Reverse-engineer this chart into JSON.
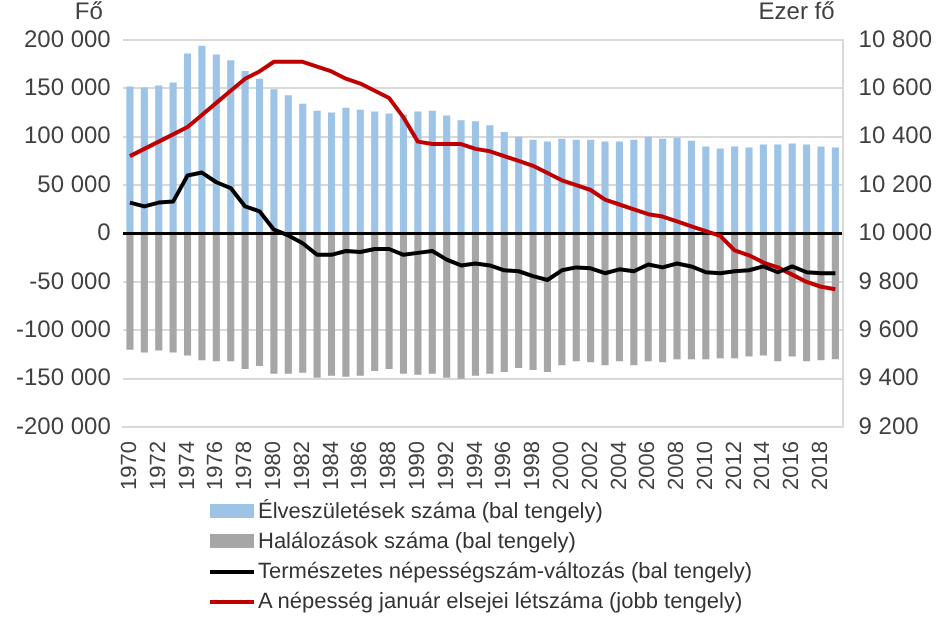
{
  "chart_data": {
    "type": "bar",
    "stacked": true,
    "categories": [
      "1970",
      null,
      "1972",
      null,
      "1974",
      null,
      "1976",
      null,
      "1978",
      null,
      "1980",
      null,
      "1982",
      null,
      "1984",
      null,
      "1986",
      null,
      "1988",
      null,
      "1990",
      null,
      "1992",
      null,
      "1994",
      null,
      "1996",
      null,
      "1998",
      null,
      "2000",
      null,
      "2002",
      null,
      "2004",
      null,
      "2006",
      null,
      "2008",
      null,
      "2010",
      null,
      "2012",
      null,
      "2014",
      null,
      "2016",
      null,
      "2018",
      null
    ],
    "ylabel": "Fő",
    "y2label": "Ezer fő",
    "series": [
      {
        "name": "Élveszületések száma (bal tengely)",
        "color": "#9dc3e6",
        "values": [
          152000,
          151000,
          153000,
          156000,
          186000,
          194000,
          185000,
          179000,
          168000,
          160000,
          149000,
          143000,
          134000,
          127000,
          125000,
          130000,
          128000,
          126000,
          124000,
          123000,
          126000,
          127000,
          122000,
          117000,
          116000,
          112000,
          105000,
          100000,
          97000,
          95000,
          98000,
          97000,
          97000,
          95000,
          95000,
          97000,
          100000,
          98000,
          99000,
          96000,
          90000,
          88000,
          90000,
          89000,
          92000,
          92000,
          93000,
          92000,
          90000,
          89000
        ]
      },
      {
        "name": "Halálozások száma (bal tengely)",
        "color": "#a6a6a6",
        "values": [
          -120000,
          -123000,
          -121000,
          -123000,
          -126000,
          -131000,
          -132000,
          -132000,
          -140000,
          -137000,
          -145000,
          -145000,
          -144000,
          -149000,
          -147000,
          -148000,
          -147000,
          -142000,
          -140000,
          -145000,
          -146000,
          -145000,
          -149000,
          -150000,
          -147000,
          -145000,
          -143000,
          -139000,
          -141000,
          -143000,
          -136000,
          -132000,
          -133000,
          -136000,
          -132000,
          -136000,
          -132000,
          -133000,
          -130000,
          -130000,
          -130000,
          -129000,
          -129000,
          -127000,
          -126000,
          -132000,
          -127000,
          -132000,
          -131000,
          -130000
        ]
      },
      {
        "name": "Természetes népességszám-változás (bal tengely)",
        "type": "line",
        "color": "#000000",
        "values": [
          32000,
          28000,
          32000,
          33000,
          60000,
          63000,
          53000,
          47000,
          28000,
          23000,
          4000,
          -2000,
          -10000,
          -22000,
          -22000,
          -18000,
          -19000,
          -16000,
          -16000,
          -22000,
          -20000,
          -18000,
          -27000,
          -33000,
          -31000,
          -33000,
          -38000,
          -39000,
          -44000,
          -48000,
          -38000,
          -35000,
          -36000,
          -41000,
          -37000,
          -39000,
          -32000,
          -35000,
          -31000,
          -34000,
          -40000,
          -41000,
          -39000,
          -38000,
          -34000,
          -40000,
          -34000,
          -40000,
          -41000,
          -41000
        ]
      },
      {
        "name": "A népesség január elsejei létszáma (jobb tengely)",
        "type": "line",
        "axis": "y2",
        "color": "#c00000",
        "values": [
          10320,
          10350,
          10380,
          10410,
          10440,
          10490,
          10540,
          10590,
          10640,
          10670,
          10710,
          10710,
          10710,
          10690,
          10670,
          10640,
          10620,
          10590,
          10560,
          10480,
          10380,
          10370,
          10370,
          10370,
          10350,
          10340,
          10320,
          10300,
          10280,
          10250,
          10220,
          10200,
          10180,
          10140,
          10120,
          10100,
          10080,
          10070,
          10050,
          10030,
          10010,
          9990,
          9930,
          9910,
          9880,
          9860,
          9830,
          9800,
          9780,
          9770
        ]
      }
    ],
    "ylim": [
      -200000,
      200000
    ],
    "yticks": [
      {
        "value": -200000,
        "label": "-200 000"
      },
      {
        "value": -150000,
        "label": "-150 000"
      },
      {
        "value": -100000,
        "label": "-100 000"
      },
      {
        "value": -50000,
        "label": "-50 000"
      },
      0,
      {
        "value": 50000,
        "label": "50 000"
      },
      {
        "value": 100000,
        "label": "100 000"
      },
      {
        "value": 150000,
        "label": "150 000"
      },
      {
        "value": 200000,
        "label": "200 000"
      }
    ],
    "y2lim": [
      9200,
      10800
    ],
    "y2ticks": [
      {
        "value": 9200,
        "label": "9 200"
      },
      {
        "value": 9400,
        "label": "9 400"
      },
      {
        "value": 9600,
        "label": "9 600"
      },
      {
        "value": 9800,
        "label": "9 800"
      },
      {
        "value": 10000,
        "label": "10 000"
      },
      {
        "value": 10200,
        "label": "10 200"
      },
      {
        "value": 10400,
        "label": "10 400"
      },
      {
        "value": 10600,
        "label": "10 600"
      },
      {
        "value": 10800,
        "label": "10 800"
      }
    ],
    "grid": "y",
    "legend": "bottom"
  }
}
